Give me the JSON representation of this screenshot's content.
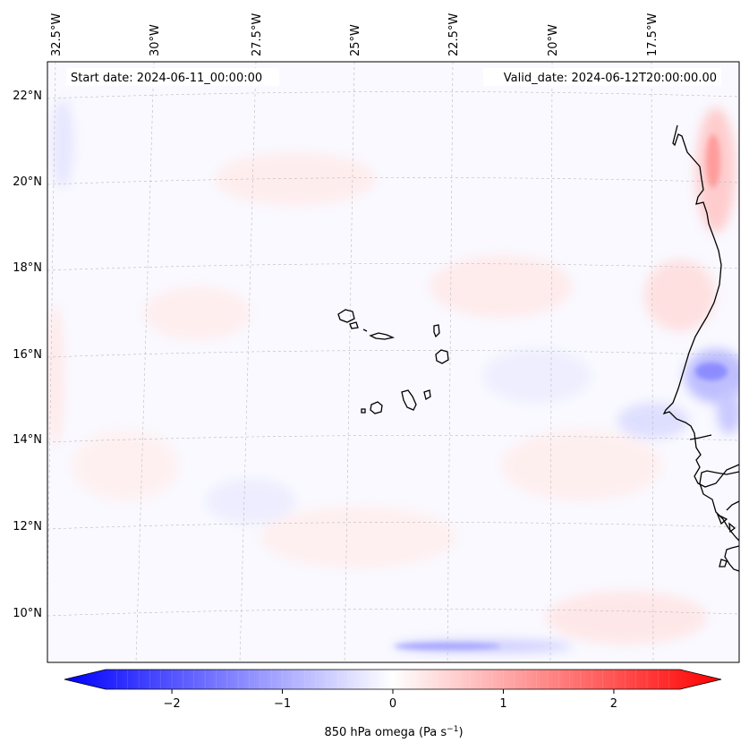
{
  "map": {
    "start_label": "Start date: 2024-06-11_00:00:00",
    "valid_label": "Valid_date: 2024-06-12T20:00:00.00",
    "lon_ticks": [
      "32.5°W",
      "30°W",
      "27.5°W",
      "25°W",
      "22.5°W",
      "20°W",
      "17.5°W"
    ],
    "lat_ticks": [
      "22°N",
      "20°N",
      "18°N",
      "16°N",
      "14°N",
      "12°N",
      "10°N"
    ],
    "extent": {
      "lon": [
        -33,
        -15
      ],
      "lat": [
        9,
        23
      ]
    },
    "field": "850 hPa omega",
    "coastline_color": "#000000",
    "gridline_color": "#bbbbbb"
  },
  "colorbar": {
    "label_main": "850 hPa omega (Pa s",
    "label_exp": "−1",
    "label_close": ")",
    "ticks": [
      "−2",
      "−1",
      "0",
      "1",
      "2"
    ],
    "tick_values": [
      -2,
      -1,
      0,
      1,
      2
    ],
    "range": [
      -2.6,
      2.6
    ],
    "cmap": "bwr",
    "colors": {
      "low": "#0000ff",
      "mid": "#ffffff",
      "high": "#ff0000"
    },
    "extend": "both"
  }
}
